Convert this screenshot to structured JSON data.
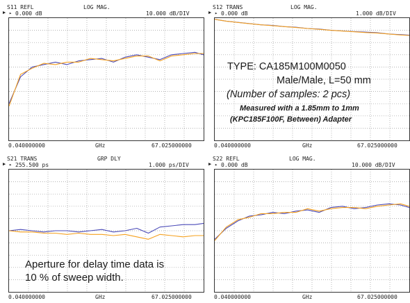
{
  "panels": [
    {
      "id": "s11",
      "trace": "S11 REFL",
      "format": "LOG MAG.",
      "ref": "0.000 dB",
      "scale": "10.000 dB/DIV",
      "start": "0.040000000",
      "unit": "GHz",
      "stop": "67.025000000"
    },
    {
      "id": "s12",
      "trace": "S12 TRANS",
      "format": "LOG MAG.",
      "ref": "0.000 dB",
      "scale": "1.000 dB/DIV",
      "start": "0.040000000",
      "unit": "GHz",
      "stop": "67.025000000"
    },
    {
      "id": "s21",
      "trace": "S21 TRANS",
      "format": "GRP DLY",
      "ref": "255.500 ps",
      "scale": "1.000 ps/DIV",
      "start": "0.040000000",
      "unit": "GHz",
      "stop": "67.025000000"
    },
    {
      "id": "s22",
      "trace": "S22 REFL",
      "format": "LOG MAG.",
      "ref": "0.000 dB",
      "scale": "10.000 dB/DIV",
      "start": "0.040000000",
      "unit": "GHz",
      "stop": "67.025000000"
    }
  ],
  "annotations": {
    "type_line": "TYPE: CA185M100M0050",
    "male_line": "Male/Male, L=50 mm",
    "samples_line": "(Number of samples: 2 pcs)",
    "measured_line": "Measured with a 1.85mm to 1mm",
    "adapter_line": "(KPC185F100F, Between) Adapter",
    "aperture_line1": "Aperture for delay time data is",
    "aperture_line2": "10 % of sweep width."
  },
  "colors": {
    "sample_1": "#4a4ab8",
    "sample_2": "#f5a01e",
    "grid": "#9a9a9a",
    "frame": "#333333"
  },
  "chart_data": [
    {
      "type": "line",
      "trace": "S11 REFL",
      "format": "LOG MAG.",
      "x": [
        0.04,
        4,
        8,
        12,
        16,
        20,
        24,
        28,
        32,
        36,
        40,
        44,
        48,
        52,
        56,
        60,
        64,
        67.025
      ],
      "xlim": [
        0.04,
        67.025
      ],
      "ylim": [
        -100,
        0
      ],
      "ylabel": "dB",
      "series": [
        {
          "values": [
            -70,
            -48,
            -40,
            -38,
            -36,
            -38,
            -35,
            -34,
            -33,
            -36,
            -32,
            -30,
            -32,
            -34,
            -30,
            -29,
            -28,
            -30
          ]
        },
        {
          "values": [
            -72,
            -46,
            -41,
            -37,
            -38,
            -36,
            -36,
            -33,
            -34,
            -35,
            -33,
            -31,
            -31,
            -35,
            -31,
            -30,
            -29,
            -29
          ]
        }
      ]
    },
    {
      "type": "line",
      "trace": "S12 TRANS",
      "format": "LOG MAG.",
      "x": [
        0.04,
        4,
        8,
        12,
        16,
        20,
        24,
        28,
        32,
        36,
        40,
        44,
        48,
        52,
        56,
        60,
        64,
        67.025
      ],
      "xlim": [
        0.04,
        67.025
      ],
      "ylim": [
        -10,
        0
      ],
      "ylabel": "dB",
      "series": [
        {
          "values": [
            -0.1,
            -0.25,
            -0.35,
            -0.45,
            -0.55,
            -0.6,
            -0.7,
            -0.75,
            -0.85,
            -0.9,
            -1.0,
            -1.05,
            -1.1,
            -1.15,
            -1.2,
            -1.3,
            -1.35,
            -1.4
          ]
        },
        {
          "values": [
            -0.1,
            -0.25,
            -0.36,
            -0.46,
            -0.55,
            -0.62,
            -0.7,
            -0.77,
            -0.85,
            -0.92,
            -1.0,
            -1.06,
            -1.12,
            -1.18,
            -1.23,
            -1.3,
            -1.38,
            -1.42
          ]
        }
      ]
    },
    {
      "type": "line",
      "trace": "S21 TRANS",
      "format": "GRP DLY",
      "x": [
        0.04,
        4,
        8,
        12,
        16,
        20,
        24,
        28,
        32,
        36,
        40,
        44,
        48,
        52,
        56,
        60,
        64,
        67.025
      ],
      "xlim": [
        0.04,
        67.025
      ],
      "ylim": [
        250.5,
        260.5
      ],
      "ylabel": "ps",
      "series": [
        {
          "values": [
            255.5,
            255.6,
            255.5,
            255.4,
            255.5,
            255.5,
            255.4,
            255.5,
            255.6,
            255.4,
            255.5,
            255.7,
            255.3,
            255.8,
            255.9,
            256.0,
            256.0,
            256.1
          ]
        },
        {
          "values": [
            255.5,
            255.4,
            255.4,
            255.3,
            255.3,
            255.2,
            255.3,
            255.2,
            255.2,
            255.1,
            255.2,
            255.0,
            254.8,
            255.2,
            255.1,
            255.0,
            255.1,
            255.1
          ]
        }
      ]
    },
    {
      "type": "line",
      "trace": "S22 REFL",
      "format": "LOG MAG.",
      "x": [
        0.04,
        4,
        8,
        12,
        16,
        20,
        24,
        28,
        32,
        36,
        40,
        44,
        48,
        52,
        56,
        60,
        64,
        67.025
      ],
      "xlim": [
        0.04,
        67.025
      ],
      "ylim": [
        -100,
        0
      ],
      "ylabel": "dB",
      "series": [
        {
          "values": [
            -57,
            -48,
            -42,
            -38,
            -37,
            -35,
            -36,
            -34,
            -33,
            -35,
            -31,
            -30,
            -32,
            -31,
            -29,
            -28,
            -29,
            -31
          ]
        },
        {
          "values": [
            -58,
            -47,
            -41,
            -39,
            -36,
            -36,
            -35,
            -35,
            -32,
            -34,
            -32,
            -31,
            -31,
            -32,
            -30,
            -29,
            -28,
            -30
          ]
        }
      ]
    }
  ]
}
